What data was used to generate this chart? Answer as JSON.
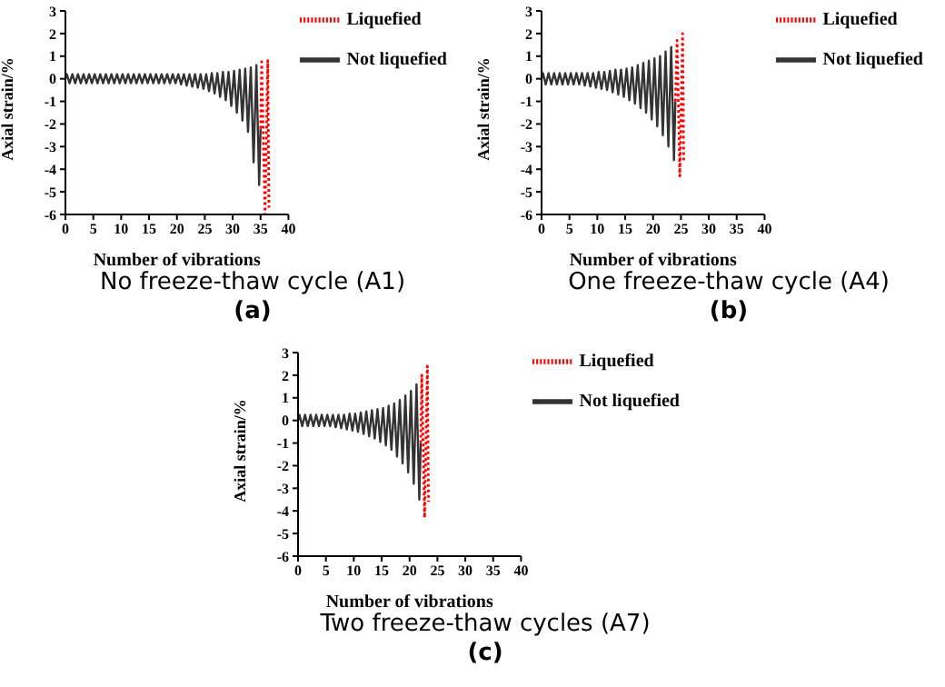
{
  "chart_data": [
    {
      "type": "line",
      "title": "No freeze-thaw cycle (A1)",
      "subtitle": "(a)",
      "xlabel": "Number of vibrations",
      "ylabel": "Axial strain/%",
      "xlim": [
        0,
        40
      ],
      "xticks": [
        0,
        5,
        10,
        15,
        20,
        25,
        30,
        35,
        40
      ],
      "ylim": [
        -6,
        3
      ],
      "yticks": [
        -6,
        -5,
        -4,
        -3,
        -2,
        -1,
        0,
        1,
        2,
        3
      ],
      "legend": "top right",
      "series": [
        {
          "name": "Not liquefied",
          "color": "#333333",
          "line_style": "solid",
          "x": [
            0,
            0.25,
            0.75,
            1.25,
            1.75,
            2.25,
            2.75,
            3.25,
            3.75,
            4.25,
            4.75,
            5.25,
            5.75,
            6.25,
            6.75,
            7.25,
            7.75,
            8.25,
            8.75,
            9.25,
            9.75,
            10.25,
            10.75,
            11.25,
            11.75,
            12.25,
            12.75,
            13.25,
            13.75,
            14.25,
            14.75,
            15.25,
            15.75,
            16.25,
            16.75,
            17.25,
            17.75,
            18.25,
            18.75,
            19.25,
            19.75,
            20.25,
            20.75,
            21.25,
            21.75,
            22.25,
            22.75,
            23.25,
            23.75,
            24.25,
            24.75,
            25.25,
            25.75,
            26.25,
            26.75,
            27.25,
            27.75,
            28.25,
            28.75,
            29.25,
            29.75,
            30.25,
            30.75,
            31.25,
            31.75,
            32.25,
            32.75,
            33.25,
            33.75,
            34.25,
            34.75,
            35
          ],
          "values": [
            0,
            0.2,
            -0.2,
            0.2,
            -0.2,
            0.2,
            -0.2,
            0.2,
            -0.2,
            0.2,
            -0.2,
            0.2,
            -0.2,
            0.2,
            -0.2,
            0.2,
            -0.2,
            0.2,
            -0.2,
            0.2,
            -0.2,
            0.2,
            -0.2,
            0.2,
            -0.2,
            0.2,
            -0.2,
            0.2,
            -0.2,
            0.2,
            -0.2,
            0.2,
            -0.2,
            0.2,
            -0.2,
            0.2,
            -0.2,
            0.2,
            -0.2,
            0.2,
            -0.2,
            0.2,
            -0.25,
            0.2,
            -0.3,
            0.2,
            -0.35,
            0.2,
            -0.4,
            0.2,
            -0.45,
            0.2,
            -0.55,
            0.25,
            -0.65,
            0.25,
            -0.8,
            0.3,
            -0.95,
            0.3,
            -1.2,
            0.35,
            -1.5,
            0.4,
            -1.85,
            0.45,
            -2.35,
            0.5,
            -3.7,
            0.6,
            -4.7,
            -2.2
          ]
        },
        {
          "name": "Liquefied",
          "color": "#ff0000",
          "line_style": "dotted",
          "x": [
            35,
            35.2,
            35.8,
            36.3,
            36.5
          ],
          "values": [
            -2.2,
            0.75,
            -6,
            0.8,
            -5.7
          ]
        }
      ]
    },
    {
      "type": "line",
      "title": "One freeze-thaw cycle (A4)",
      "subtitle": "(b)",
      "xlabel": "Number of vibrations",
      "ylabel": "Axial strain/%",
      "xlim": [
        0,
        40
      ],
      "xticks": [
        0,
        5,
        10,
        15,
        20,
        25,
        30,
        35,
        40
      ],
      "ylim": [
        -6,
        3
      ],
      "yticks": [
        -6,
        -5,
        -4,
        -3,
        -2,
        -1,
        0,
        1,
        2,
        3
      ],
      "legend": "top right",
      "series": [
        {
          "name": "Not liquefied",
          "color": "#333333",
          "line_style": "solid",
          "x": [
            0,
            0.25,
            0.75,
            1.25,
            1.75,
            2.25,
            2.75,
            3.25,
            3.75,
            4.25,
            4.75,
            5.25,
            5.75,
            6.25,
            6.75,
            7.25,
            7.75,
            8.25,
            8.75,
            9.25,
            9.75,
            10.25,
            10.75,
            11.25,
            11.75,
            12.25,
            12.75,
            13.25,
            13.75,
            14.25,
            14.75,
            15.25,
            15.75,
            16.25,
            16.75,
            17.25,
            17.75,
            18.25,
            18.75,
            19.25,
            19.75,
            20.25,
            20.75,
            21.25,
            21.75,
            22.25,
            22.75,
            23.25,
            23.75,
            24
          ],
          "values": [
            0,
            0.25,
            -0.25,
            0.25,
            -0.25,
            0.25,
            -0.25,
            0.25,
            -0.25,
            0.25,
            -0.25,
            0.25,
            -0.25,
            0.25,
            -0.25,
            0.25,
            -0.3,
            0.25,
            -0.35,
            0.25,
            -0.4,
            0.3,
            -0.45,
            0.3,
            -0.5,
            0.35,
            -0.6,
            0.4,
            -0.7,
            0.4,
            -0.8,
            0.45,
            -0.95,
            0.5,
            -1.1,
            0.6,
            -1.3,
            0.7,
            -1.5,
            0.8,
            -1.8,
            0.9,
            -2.1,
            1,
            -2.5,
            1.2,
            -3,
            1.4,
            -3.6,
            -1
          ]
        },
        {
          "name": "Liquefied",
          "color": "#ff0000",
          "line_style": "dotted",
          "x": [
            24,
            24.3,
            24.8,
            25.3,
            25.5
          ],
          "values": [
            -1,
            1.7,
            -4.3,
            2,
            -3.7
          ]
        }
      ]
    },
    {
      "type": "line",
      "title": "Two freeze-thaw cycles (A7)",
      "subtitle": "(c)",
      "xlabel": "Number of vibrations",
      "ylabel": "Axial strain/%",
      "xlim": [
        0,
        40
      ],
      "xticks": [
        0,
        5,
        10,
        15,
        20,
        25,
        30,
        35,
        40
      ],
      "ylim": [
        -6,
        3
      ],
      "yticks": [
        -6,
        -5,
        -4,
        -3,
        -2,
        -1,
        0,
        1,
        2,
        3
      ],
      "legend": "top right",
      "series": [
        {
          "name": "Not liquefied",
          "color": "#333333",
          "line_style": "solid",
          "x": [
            0,
            0.25,
            0.75,
            1.25,
            1.75,
            2.25,
            2.75,
            3.25,
            3.75,
            4.25,
            4.75,
            5.25,
            5.75,
            6.25,
            6.75,
            7.25,
            7.75,
            8.25,
            8.75,
            9.25,
            9.75,
            10.25,
            10.75,
            11.25,
            11.75,
            12.25,
            12.75,
            13.25,
            13.75,
            14.25,
            14.75,
            15.25,
            15.75,
            16.25,
            16.75,
            17.25,
            17.75,
            18.25,
            18.75,
            19.25,
            19.75,
            20.25,
            20.75,
            21.25,
            21.75,
            22
          ],
          "values": [
            0,
            0.25,
            -0.25,
            0.25,
            -0.25,
            0.25,
            -0.25,
            0.25,
            -0.25,
            0.25,
            -0.25,
            0.25,
            -0.25,
            0.25,
            -0.3,
            0.25,
            -0.35,
            0.25,
            -0.4,
            0.3,
            -0.45,
            0.3,
            -0.5,
            0.35,
            -0.6,
            0.4,
            -0.7,
            0.45,
            -0.8,
            0.5,
            -0.95,
            0.55,
            -1.1,
            0.65,
            -1.3,
            0.75,
            -1.6,
            0.9,
            -1.9,
            1.1,
            -2.3,
            1.3,
            -2.8,
            1.6,
            -3.5,
            -1
          ]
        },
        {
          "name": "Liquefied",
          "color": "#ff0000",
          "line_style": "dotted",
          "x": [
            22,
            22.2,
            22.7,
            23.2,
            23.4
          ],
          "values": [
            -1,
            2,
            -4.3,
            2.4,
            -3.6
          ]
        }
      ]
    }
  ]
}
